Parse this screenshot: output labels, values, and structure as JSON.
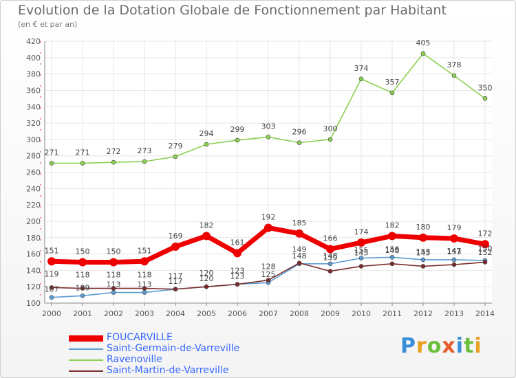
{
  "title": "Evolution de la Dotation Globale de Fonctionnement par Habitant",
  "subtitle": "(en € et par an)",
  "logo": {
    "text": "Proxiti",
    "letters": [
      "P",
      "r",
      "o",
      "x",
      "i",
      "t",
      "i"
    ],
    "colors": [
      "#3a8fd9",
      "#e8a020",
      "#6cbf3c",
      "#e65c2a",
      "#3a8fd9",
      "#6cbf3c",
      "#e8a020"
    ]
  },
  "chart_data": {
    "type": "line",
    "title": "Evolution de la Dotation Globale de Fonctionnement par Habitant",
    "subtitle": "(en € et par an)",
    "xlabel": "",
    "ylabel": "",
    "ylim": [
      100,
      420
    ],
    "yticks": [
      100,
      120,
      140,
      160,
      180,
      200,
      220,
      240,
      260,
      280,
      300,
      320,
      340,
      360,
      380,
      400,
      420
    ],
    "grid": true,
    "legend_position": "bottom-left",
    "x": [
      "2000",
      "2001",
      "2002",
      "2003",
      "2004",
      "2005",
      "2006",
      "2007",
      "2008",
      "2009",
      "2010",
      "2011",
      "2012",
      "2013",
      "2014"
    ],
    "series": [
      {
        "name": "FOUCARVILLE",
        "color": "#ee0000",
        "values": [
          151,
          150,
          150,
          151,
          169,
          182,
          161,
          192,
          185,
          166,
          174,
          182,
          180,
          179,
          172
        ]
      },
      {
        "name": "Saint-Germain-de-Varreville",
        "color": "#5b9bd5",
        "values": [
          107,
          109,
          113,
          113,
          117,
          120,
          123,
          125,
          148,
          148,
          155,
          156,
          153,
          153,
          152
        ]
      },
      {
        "name": "Ravenoville",
        "color": "#8bd050",
        "values": [
          271,
          271,
          272,
          273,
          279,
          294,
          299,
          303,
          296,
          300,
          374,
          357,
          405,
          378,
          350
        ]
      },
      {
        "name": "Saint-Martin-de-Varreville",
        "color": "#7a2a2a",
        "values": [
          119,
          118,
          118,
          118,
          117,
          120,
          123,
          128,
          149,
          139,
          145,
          148,
          145,
          147,
          150
        ]
      }
    ]
  }
}
